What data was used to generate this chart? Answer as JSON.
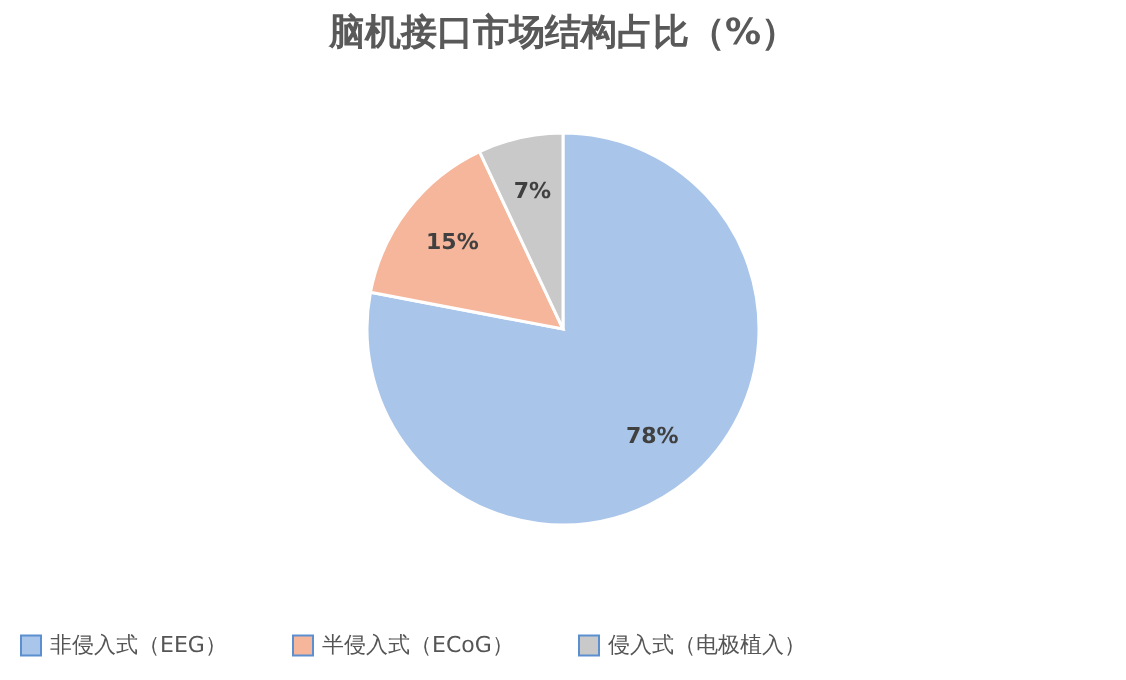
{
  "chart_data": {
    "type": "pie",
    "title": "脑机接口市场结构占比（%）",
    "categories": [
      "非侵入式（EEG）",
      "半侵入式（ECoG）",
      "侵入式（电极植入）"
    ],
    "values": [
      78,
      15,
      7
    ],
    "colors": [
      "#a9c5e9",
      "#f5b69b",
      "#c9c9c9"
    ],
    "value_labels": [
      "78%",
      "15%",
      "7%"
    ],
    "legend": "bottom"
  }
}
